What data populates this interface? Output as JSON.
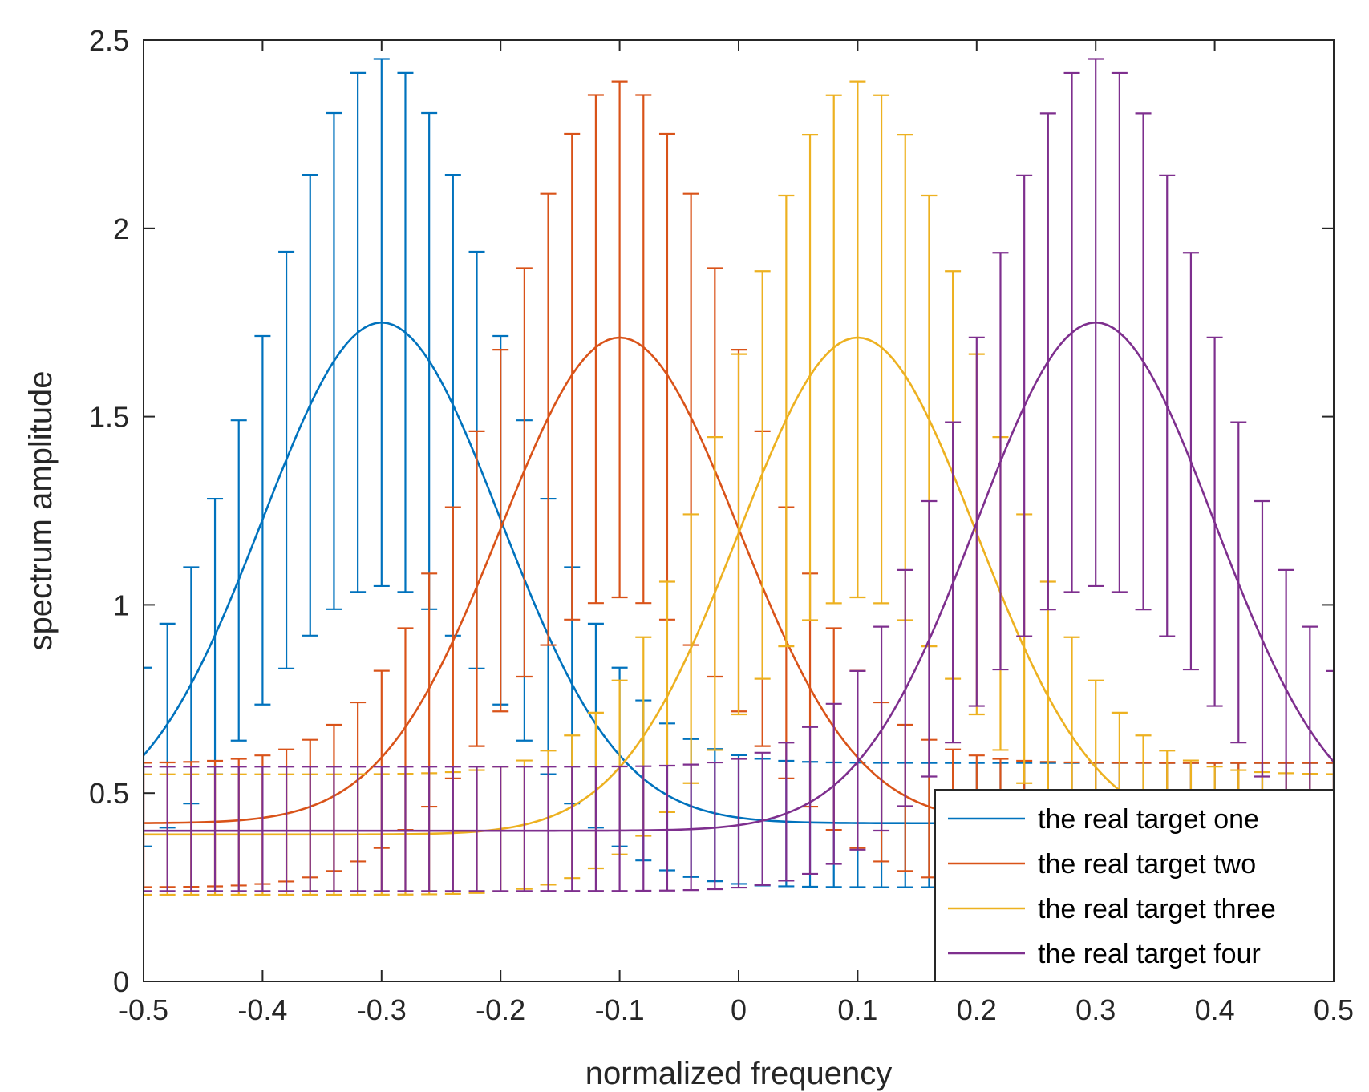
{
  "chart_data": {
    "type": "line",
    "xlabel": "normalized frequency",
    "ylabel": "spectrum amplitude",
    "xlim": [
      -0.5,
      0.5
    ],
    "ylim": [
      0,
      2.5
    ],
    "xticks": [
      "-0.5",
      "-0.4",
      "-0.3",
      "-0.2",
      "-0.1",
      "0",
      "0.1",
      "0.2",
      "0.3",
      "0.4",
      "0.5"
    ],
    "yticks": [
      "0",
      "0.5",
      "1",
      "1.5",
      "2",
      "2.5"
    ],
    "grid": false,
    "legend_position": "bottom-right",
    "x_step": 0.01,
    "series": [
      {
        "name": "the real target one",
        "color": "#0072BD",
        "peak_x": -0.3,
        "curve": {
          "base": 0.42,
          "amplitude": 1.33,
          "sigma": 0.1
        },
        "error_upper": {
          "base": 0.58,
          "amplitude": 1.87,
          "sigma": 0.1
        },
        "error_lower": {
          "base": 0.25,
          "amplitude": 0.8,
          "sigma": 0.1
        }
      },
      {
        "name": "the real target two",
        "color": "#D95319",
        "peak_x": -0.1,
        "curve": {
          "base": 0.42,
          "amplitude": 1.29,
          "sigma": 0.1
        },
        "error_upper": {
          "base": 0.58,
          "amplitude": 1.81,
          "sigma": 0.1
        },
        "error_lower": {
          "base": 0.25,
          "amplitude": 0.77,
          "sigma": 0.1
        }
      },
      {
        "name": "the real target three",
        "color": "#EDB120",
        "peak_x": 0.1,
        "curve": {
          "base": 0.39,
          "amplitude": 1.32,
          "sigma": 0.1
        },
        "error_upper": {
          "base": 0.55,
          "amplitude": 1.84,
          "sigma": 0.1
        },
        "error_lower": {
          "base": 0.23,
          "amplitude": 0.79,
          "sigma": 0.1
        }
      },
      {
        "name": "the real target four",
        "color": "#7E2F8E",
        "peak_x": 0.3,
        "curve": {
          "base": 0.4,
          "amplitude": 1.35,
          "sigma": 0.1
        },
        "error_upper": {
          "base": 0.57,
          "amplitude": 1.88,
          "sigma": 0.1
        },
        "error_lower": {
          "base": 0.24,
          "amplitude": 0.81,
          "sigma": 0.1
        }
      }
    ]
  }
}
